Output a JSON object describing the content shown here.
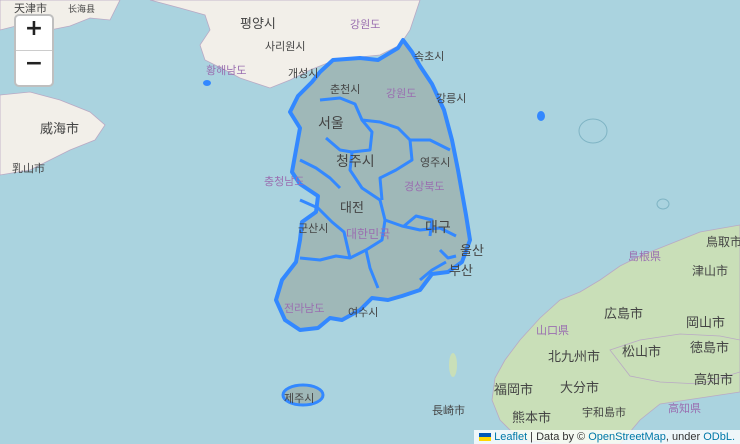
{
  "controls": {
    "zoom_in": "+",
    "zoom_out": "−"
  },
  "labels": {
    "tianjin_top": "天津市",
    "changhai": "长海县",
    "pyongyang": "평양시",
    "gangwon_nk": "강원도",
    "sariwon": "사리원시",
    "hwanghae": "황해남도",
    "kaesong": "개성시",
    "chuncheon": "춘천시",
    "sokcho": "속초시",
    "gangwon": "강원도",
    "gangneung": "강릉시",
    "seoul": "서울",
    "weihai": "威海市",
    "rushan": "乳山市",
    "cheongju": "청주시",
    "yeongju": "영주시",
    "chungnam": "충청남도",
    "gyeongbuk": "경상북도",
    "daejeon": "대전",
    "gunsan": "군산시",
    "daehan": "대한민국",
    "daegu": "대구",
    "ulsan": "울산",
    "busan": "부산",
    "jeonnam": "전라남도",
    "yeosu": "여수시",
    "jeju": "제주시",
    "tottori": "鳥取市",
    "shimane": "島根県",
    "tsuyama": "津山市",
    "yamaguchi": "山口県",
    "hiroshima": "広島市",
    "okayama": "岡山市",
    "kitakyushu": "北九州市",
    "matsuyama": "松山市",
    "tokushima": "徳島市",
    "fukuoka": "福岡市",
    "oita": "大分市",
    "kochi": "高知市",
    "nagasaki": "長崎市",
    "kumamoto": "熊本市",
    "uwajima": "宇和島市",
    "kochi_pref": "高知県"
  },
  "attribution": {
    "leaflet": "Leaflet",
    "data_by": " | Data by © ",
    "osm": "OpenStreetMap",
    "under": ", under ",
    "odbl": "ODbL."
  },
  "colors": {
    "sea": "#aad3df",
    "land": "#f2efe9",
    "korea_fill": "#9fb8b8",
    "boundary": "#3388ff",
    "japan_terrain": "#c9dfb8"
  }
}
